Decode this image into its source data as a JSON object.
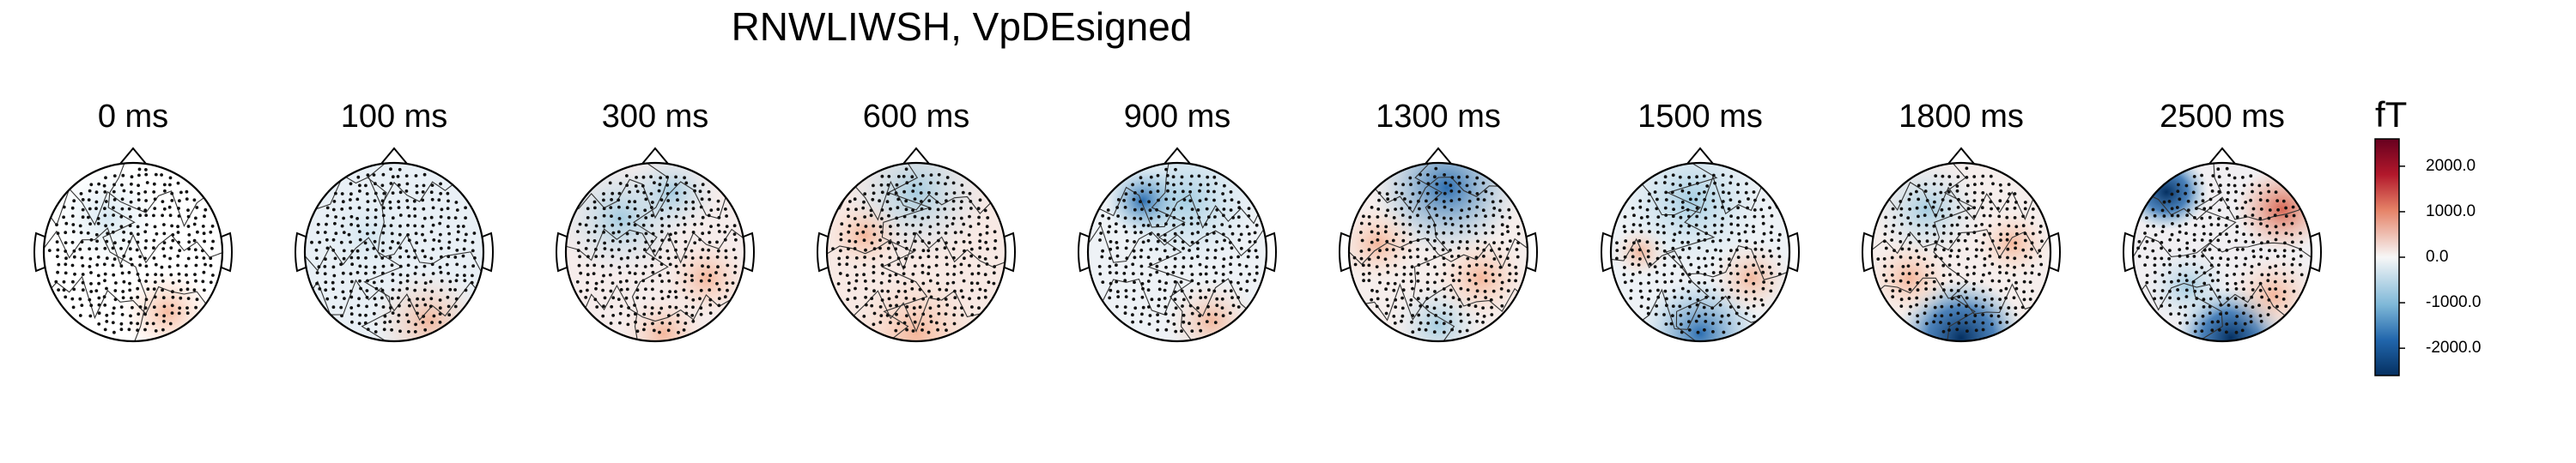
{
  "figure": {
    "title": "RNWLIWSH, VpDEsigned"
  },
  "topomaps": [
    {
      "label": "0 ms"
    },
    {
      "label": "100 ms"
    },
    {
      "label": "300 ms"
    },
    {
      "label": "600 ms"
    },
    {
      "label": "900 ms"
    },
    {
      "label": "1300 ms"
    },
    {
      "label": "1500 ms"
    },
    {
      "label": "1800 ms"
    },
    {
      "label": "2500 ms"
    }
  ],
  "colorbar": {
    "unit": "fT",
    "range": [
      -2600,
      2600
    ],
    "colormap": "RdBu_r",
    "colors": {
      "max": "#67001f",
      "high": "#d6604d",
      "mid_high": "#f4a582",
      "zero": "#f7f7f7",
      "mid_low": "#92c5de",
      "low": "#2166ac",
      "min": "#053061"
    },
    "ticks": [
      {
        "value": 2000,
        "label": "2000.0"
      },
      {
        "value": 1000,
        "label": "1000.0"
      },
      {
        "value": 0,
        "label": "0.0"
      },
      {
        "value": -1000,
        "label": "-1000.0"
      },
      {
        "value": -2000,
        "label": "-2000.0"
      }
    ]
  }
}
